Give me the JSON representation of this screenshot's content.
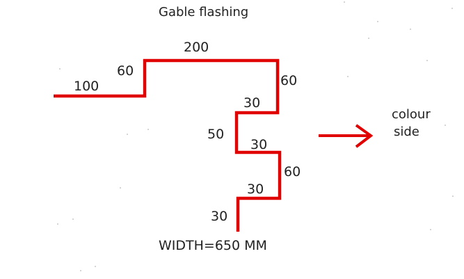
{
  "title": "Gable flashing",
  "dimensions": {
    "seg_100": "100",
    "seg_60_left": "60",
    "seg_200": "200",
    "seg_60_right": "60",
    "seg_30_first": "30",
    "seg_50": "50",
    "seg_30_second": "30",
    "seg_60_lower": "60",
    "seg_30_third": "30",
    "seg_30_end": "30"
  },
  "width_label": "WIDTH=650 MM",
  "colour_side": {
    "line1": "colour",
    "line2": "side"
  },
  "colors": {
    "profile": "#e00000",
    "arrow": "#e00000",
    "text": "#222222"
  },
  "icons": {
    "direction": "arrow-right-icon"
  }
}
